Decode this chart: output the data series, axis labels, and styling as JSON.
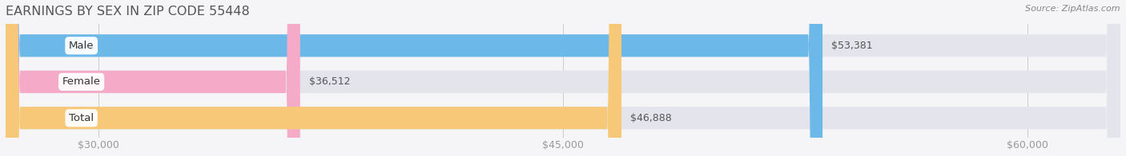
{
  "title": "EARNINGS BY SEX IN ZIP CODE 55448",
  "source": "Source: ZipAtlas.com",
  "categories": [
    "Male",
    "Female",
    "Total"
  ],
  "values": [
    53381,
    36512,
    46888
  ],
  "bar_colors": [
    "#6cb8e8",
    "#f5aac8",
    "#f7c878"
  ],
  "bar_bg_color": "#e4e4ec",
  "value_labels": [
    "$53,381",
    "$36,512",
    "$46,888"
  ],
  "xmin": 27000,
  "xmax": 63000,
  "xticks": [
    30000,
    45000,
    60000
  ],
  "xtick_labels": [
    "$30,000",
    "$45,000",
    "$60,000"
  ],
  "background_color": "#f5f5f8",
  "title_color": "#555555",
  "tick_color": "#999999",
  "title_fontsize": 11.5,
  "bar_label_fontsize": 9.5,
  "value_fontsize": 9,
  "tick_fontsize": 9,
  "value_text_color": "#555555"
}
